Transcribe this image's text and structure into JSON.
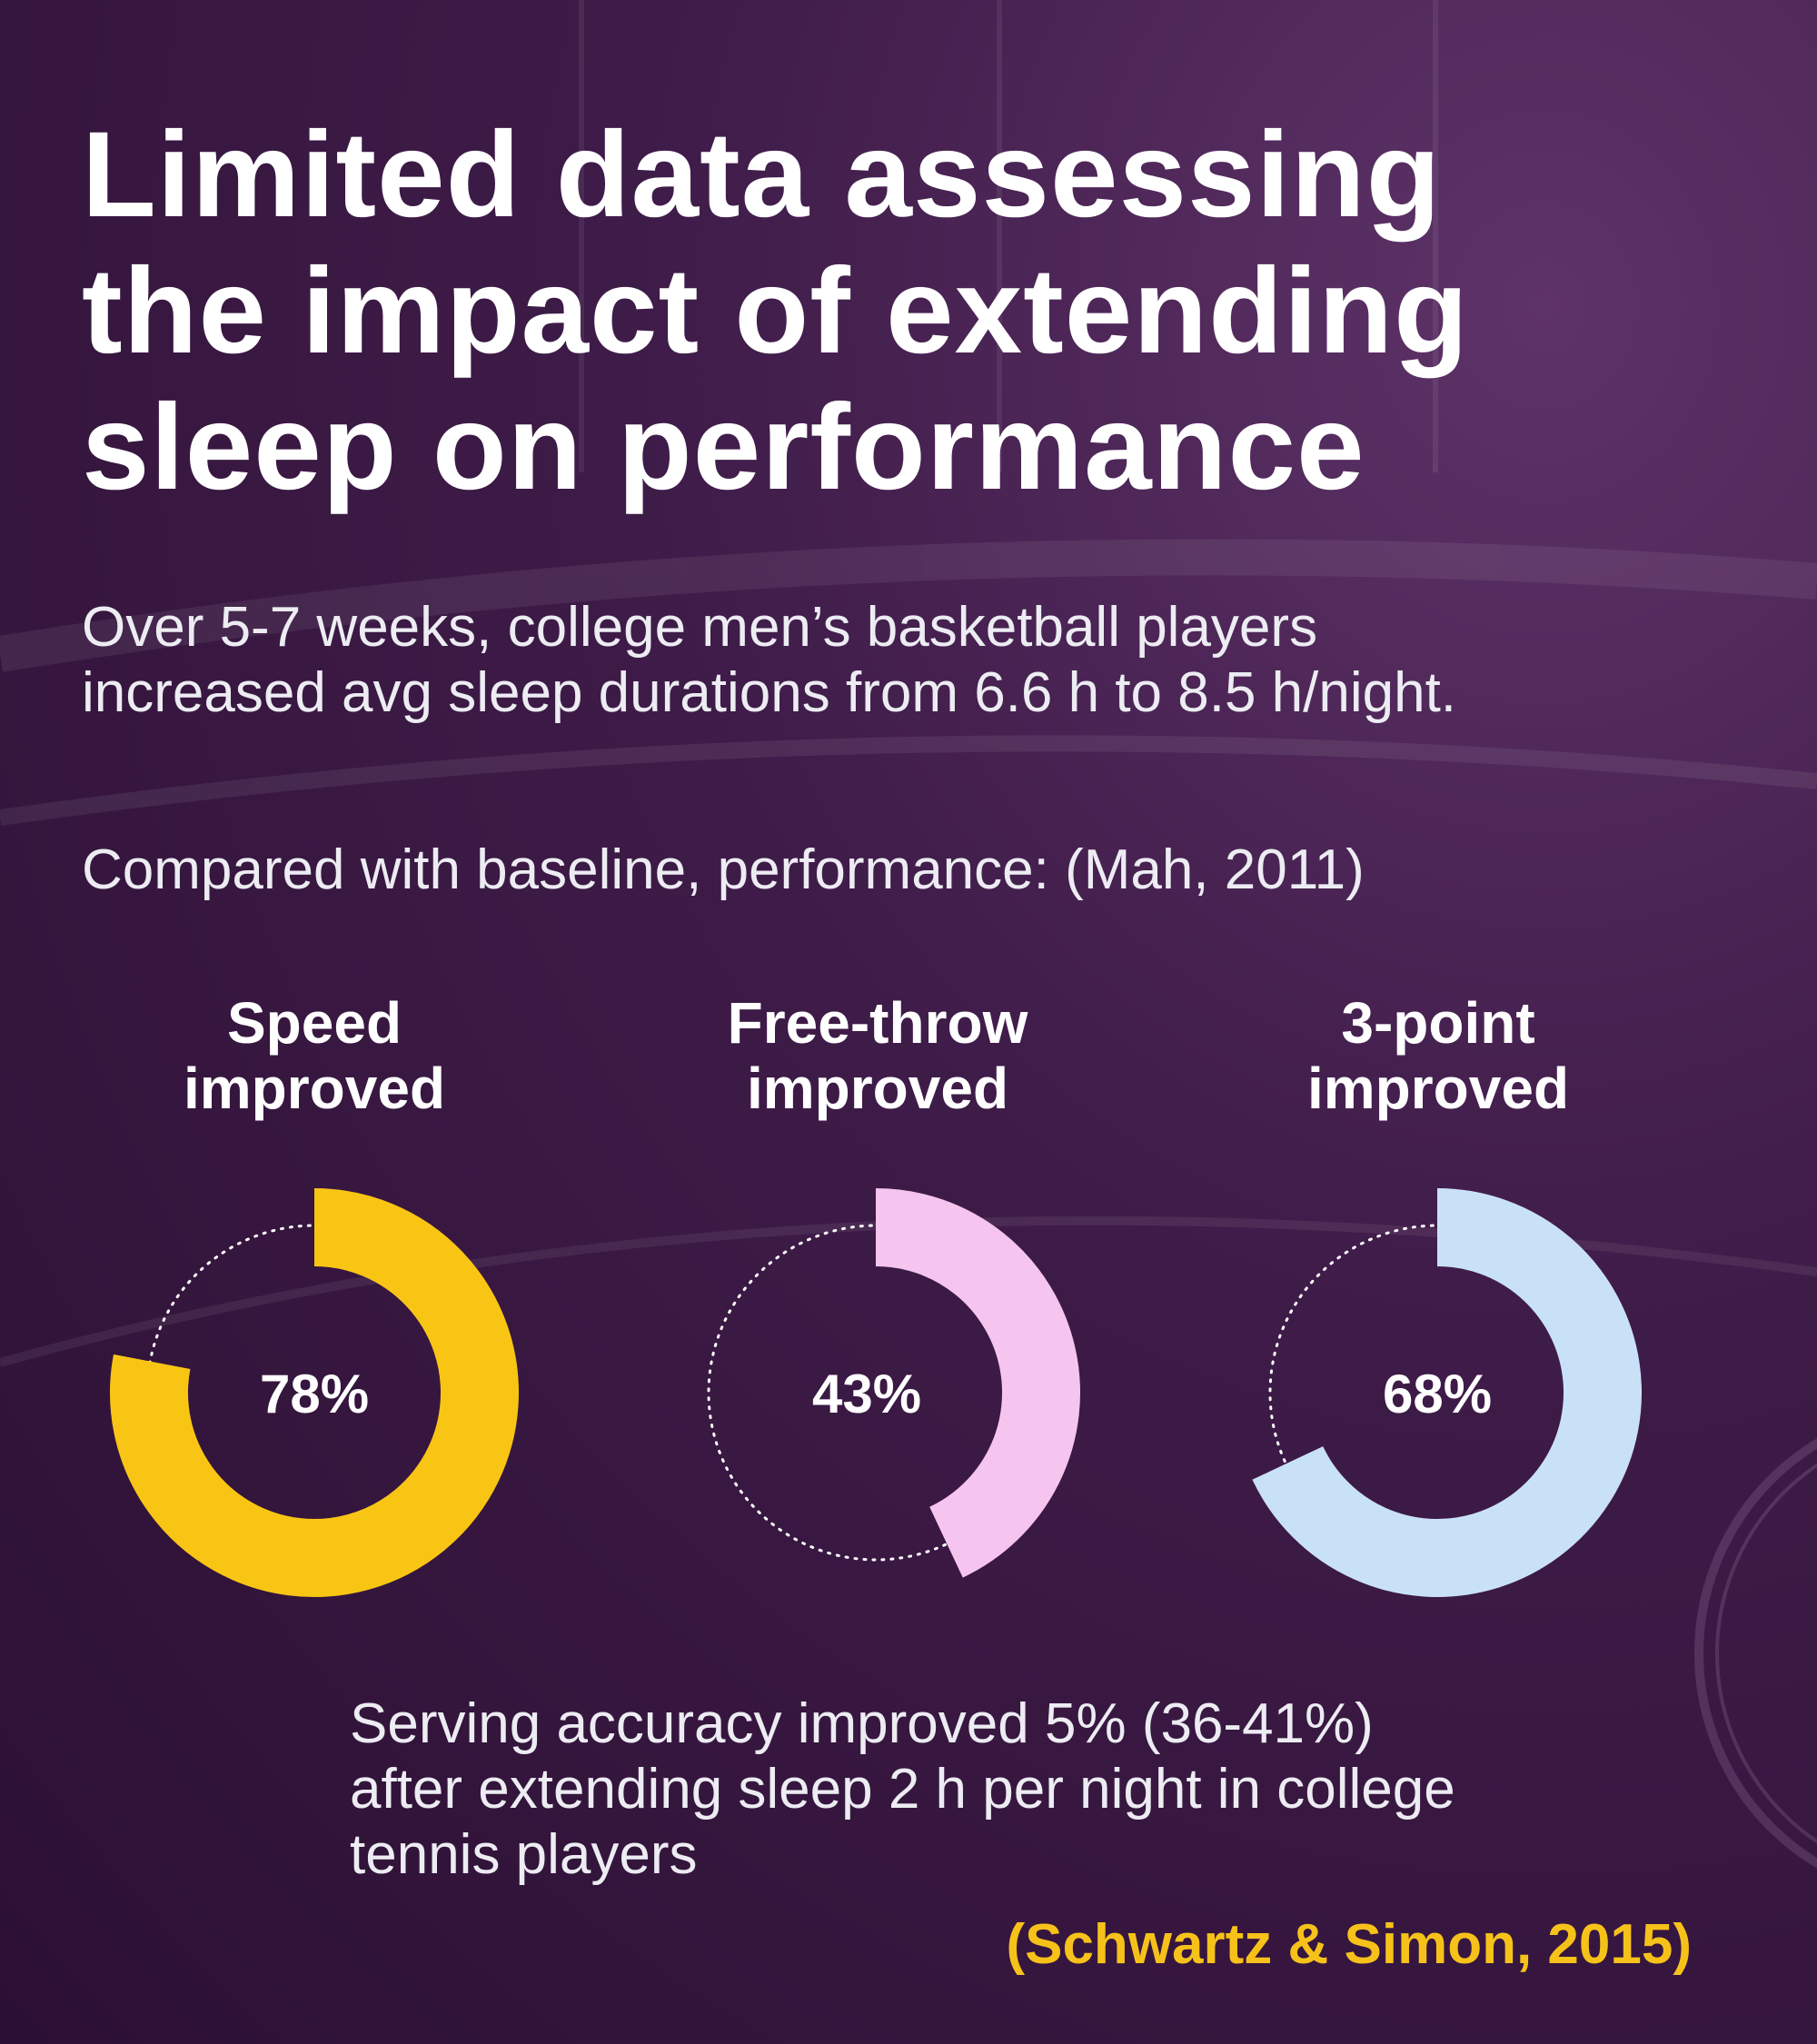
{
  "title_lines": [
    "Limited data assessing",
    "the impact of extending",
    "sleep on performance"
  ],
  "intro_lines": [
    "Over 5-7 weeks, college men’s basketball players",
    "increased avg sleep durations from 6.6 h to 8.5 h/night."
  ],
  "compared": "Compared with baseline, performance: (Mah, 2011)",
  "stats": [
    {
      "label_lines": [
        "Speed",
        "improved"
      ],
      "value": 78,
      "value_label": "78%",
      "color": "#f8c515"
    },
    {
      "label_lines": [
        "Free-throw",
        "improved"
      ],
      "value": 43,
      "value_label": "43%",
      "color": "#f5c4ef"
    },
    {
      "label_lines": [
        "3-point",
        "improved"
      ],
      "value": 68,
      "value_label": "68%",
      "color": "#c9e1f7"
    }
  ],
  "serving_lines": [
    "Serving accuracy improved 5% (36-41%)",
    "after extending sleep 2 h per night in college",
    "tennis players"
  ],
  "citation": "(Schwartz & Simon, 2015)",
  "colors": {
    "background": "#3f1c49",
    "citation": "#f6c21a",
    "dotted_track": "#ffffff"
  }
}
